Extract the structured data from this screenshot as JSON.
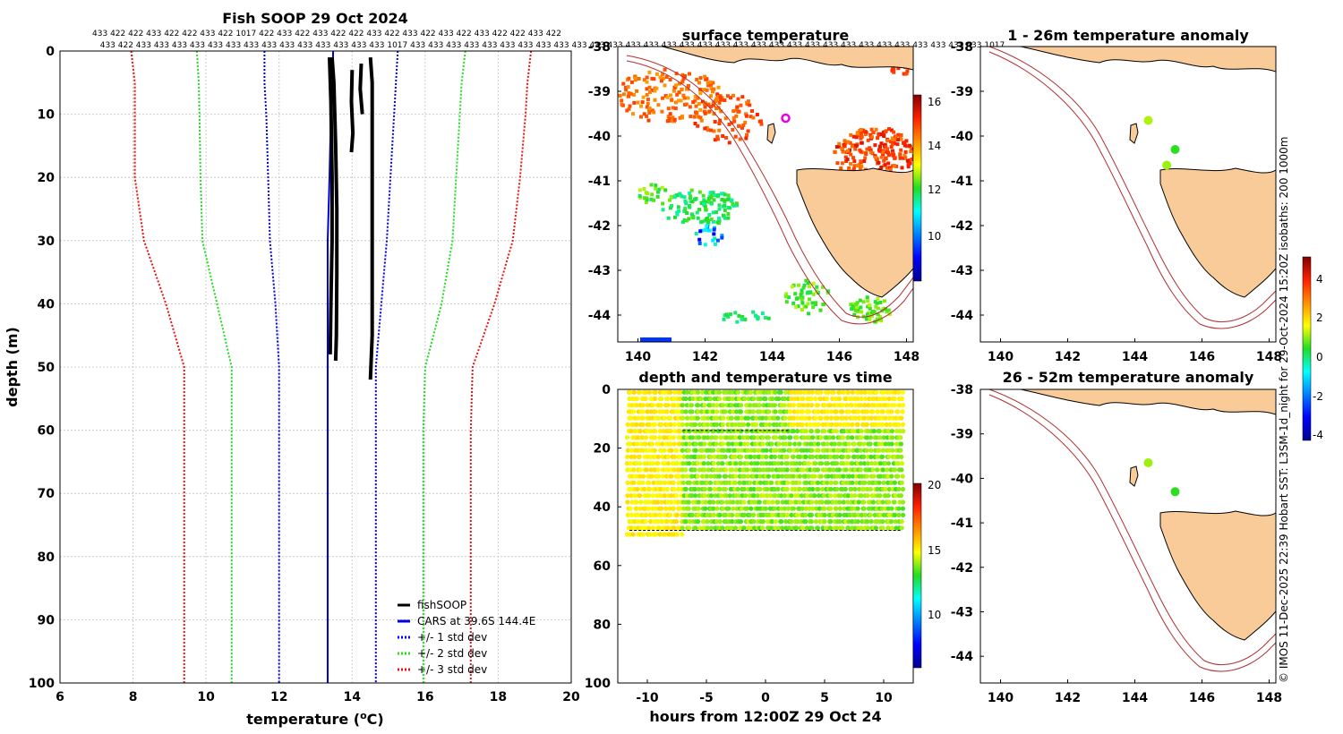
{
  "profile": {
    "title": "Fish SOOP 29 Oct 2024",
    "id_row1": "433 422 422 433 422 422 433 422 1017 422 433 422 433 422 422 433 422 433 422 433 422 433 422 422 433 422",
    "id_row2": "433 422 433 433 433 433 433 433 433 433 433 433 433 433 433 433 1017 433 433 433 433 433 433 433 433 433 433 433 433 433 433 433 433 433 433 433 433 433 433 433 433 433 433 433 433 433 433 433 433 1017",
    "xlabel": "temperature (",
    "xlabel_sup": "o",
    "xlabel_end": "C)",
    "ylabel": "depth (m)",
    "legend": [
      "fishSOOP",
      "CARS at 39.6S 144.4E",
      "+/- 1 std dev",
      "+/- 2 std dev",
      "+/- 3 std dev"
    ],
    "colors": {
      "fish": "#000000",
      "cars": "#0000dd",
      "sd1": "#0000ee",
      "sd2": "#22dd22",
      "sd3": "#ee1111"
    }
  },
  "sst": {
    "title": "surface temperature",
    "colorbar_ticks": [
      "16",
      "14",
      "12",
      "10"
    ]
  },
  "depthtime": {
    "title": "depth and temperature vs time",
    "xlabel": "hours from 12:00Z 29 Oct 24",
    "colorbar_ticks": [
      "20",
      "15",
      "10"
    ]
  },
  "anom1": {
    "title": "1 - 26m temperature anomaly"
  },
  "anom2": {
    "title": "26 - 52m temperature anomaly"
  },
  "anomaly_colorbar_ticks": [
    "4",
    "2",
    "0",
    "-2",
    "-4"
  ],
  "credit": "© IMOS 11-Dec-2025 22:39 Hobart SST: L3SM-1d_night for 29-Oct-2024 15:20Z isobaths: 200  1000m",
  "chart_data": [
    {
      "type": "line",
      "title": "Fish SOOP 29 Oct 2024",
      "xlabel": "temperature (oC)",
      "ylabel": "depth (m)",
      "xlim": [
        6,
        20
      ],
      "ylim": [
        0,
        100
      ],
      "y_reversed": true,
      "xticks": [
        6,
        8,
        10,
        12,
        14,
        16,
        18,
        20
      ],
      "yticks": [
        0,
        10,
        20,
        30,
        40,
        50,
        60,
        70,
        80,
        90,
        100
      ],
      "grid": true,
      "legend_position": "bottom-right",
      "series": [
        {
          "name": "CARS at 39.6S 144.4E",
          "style": "solid",
          "color": "#0000dd",
          "points": [
            [
              13.48,
              0
            ],
            [
              13.46,
              5
            ],
            [
              13.42,
              10
            ],
            [
              13.38,
              20
            ],
            [
              13.33,
              30
            ],
            [
              13.33,
              40
            ],
            [
              13.33,
              50
            ],
            [
              13.33,
              60
            ],
            [
              13.33,
              70
            ],
            [
              13.33,
              80
            ],
            [
              13.33,
              90
            ],
            [
              13.33,
              100
            ]
          ]
        },
        {
          "name": "+/- 1 std dev low",
          "style": "dotted",
          "color": "#0000ee",
          "points": [
            [
              11.6,
              0
            ],
            [
              11.6,
              5
            ],
            [
              11.65,
              10
            ],
            [
              11.7,
              20
            ],
            [
              11.75,
              30
            ],
            [
              11.9,
              40
            ],
            [
              12.0,
              50
            ],
            [
              12.0,
              60
            ],
            [
              12.0,
              70
            ],
            [
              12.0,
              80
            ],
            [
              12.0,
              90
            ],
            [
              12.0,
              100
            ]
          ]
        },
        {
          "name": "+/- 1 std dev high",
          "style": "dotted",
          "color": "#0000ee",
          "points": [
            [
              15.25,
              0
            ],
            [
              15.2,
              5
            ],
            [
              15.15,
              10
            ],
            [
              15.05,
              20
            ],
            [
              14.95,
              30
            ],
            [
              14.8,
              40
            ],
            [
              14.65,
              50
            ],
            [
              14.65,
              60
            ],
            [
              14.65,
              70
            ],
            [
              14.65,
              80
            ],
            [
              14.65,
              90
            ],
            [
              14.65,
              100
            ]
          ]
        },
        {
          "name": "+/- 2 std dev low",
          "style": "dotted",
          "color": "#22dd22",
          "points": [
            [
              9.75,
              0
            ],
            [
              9.8,
              5
            ],
            [
              9.82,
              10
            ],
            [
              9.85,
              20
            ],
            [
              9.9,
              30
            ],
            [
              10.3,
              40
            ],
            [
              10.7,
              50
            ],
            [
              10.7,
              60
            ],
            [
              10.7,
              70
            ],
            [
              10.7,
              80
            ],
            [
              10.7,
              90
            ],
            [
              10.7,
              100
            ]
          ]
        },
        {
          "name": "+/- 2 std dev high",
          "style": "dotted",
          "color": "#22dd22",
          "points": [
            [
              17.1,
              0
            ],
            [
              17.0,
              5
            ],
            [
              16.95,
              10
            ],
            [
              16.85,
              20
            ],
            [
              16.75,
              30
            ],
            [
              16.45,
              40
            ],
            [
              16.0,
              50
            ],
            [
              15.95,
              60
            ],
            [
              15.95,
              70
            ],
            [
              15.95,
              80
            ],
            [
              15.95,
              90
            ],
            [
              15.95,
              100
            ]
          ]
        },
        {
          "name": "+/- 3 std dev low",
          "style": "dotted",
          "color": "#ee1111",
          "points": [
            [
              7.95,
              0
            ],
            [
              8.05,
              5
            ],
            [
              8.05,
              10
            ],
            [
              8.05,
              20
            ],
            [
              8.3,
              30
            ],
            [
              8.9,
              40
            ],
            [
              9.4,
              50
            ],
            [
              9.4,
              60
            ],
            [
              9.4,
              70
            ],
            [
              9.4,
              80
            ],
            [
              9.4,
              90
            ],
            [
              9.4,
              100
            ]
          ]
        },
        {
          "name": "+/- 3 std dev high",
          "style": "dotted",
          "color": "#ee1111",
          "points": [
            [
              18.9,
              0
            ],
            [
              18.8,
              5
            ],
            [
              18.75,
              10
            ],
            [
              18.6,
              20
            ],
            [
              18.4,
              30
            ],
            [
              17.9,
              40
            ],
            [
              17.3,
              50
            ],
            [
              17.25,
              60
            ],
            [
              17.25,
              70
            ],
            [
              17.25,
              80
            ],
            [
              17.25,
              90
            ],
            [
              17.25,
              100
            ]
          ]
        },
        {
          "name": "fishSOOP profile 1",
          "style": "solid",
          "color": "#000000",
          "points": [
            [
              13.45,
              1
            ],
            [
              13.5,
              5
            ],
            [
              13.55,
              15
            ],
            [
              13.58,
              25
            ],
            [
              13.58,
              35
            ],
            [
              13.57,
              45
            ],
            [
              13.55,
              49
            ]
          ]
        },
        {
          "name": "fishSOOP profile 2",
          "style": "solid",
          "color": "#000000",
          "points": [
            [
              13.38,
              1
            ],
            [
              13.42,
              8
            ],
            [
              13.45,
              20
            ],
            [
              13.45,
              30
            ],
            [
              13.42,
              40
            ],
            [
              13.4,
              48
            ]
          ]
        },
        {
          "name": "fishSOOP profile 3",
          "style": "solid",
          "color": "#000000",
          "points": [
            [
              14.0,
              3
            ],
            [
              13.98,
              8
            ],
            [
              14.02,
              13
            ],
            [
              13.98,
              16
            ]
          ]
        },
        {
          "name": "fishSOOP profile 4",
          "style": "solid",
          "color": "#000000",
          "points": [
            [
              14.25,
              2
            ],
            [
              14.22,
              6
            ],
            [
              14.28,
              10
            ]
          ]
        },
        {
          "name": "fishSOOP profile 5",
          "style": "solid",
          "color": "#000000",
          "points": [
            [
              14.5,
              1
            ],
            [
              14.55,
              5
            ],
            [
              14.55,
              20
            ],
            [
              14.55,
              35
            ],
            [
              14.55,
              45
            ],
            [
              14.5,
              52
            ]
          ]
        }
      ]
    },
    {
      "type": "heatmap",
      "title": "surface temperature",
      "xlim": [
        139.4,
        148.2
      ],
      "ylim": [
        -44.6,
        -38
      ],
      "xticks": [
        140,
        142,
        144,
        146,
        148
      ],
      "yticks": [
        -38,
        -39,
        -40,
        -41,
        -42,
        -43,
        -44
      ],
      "colorbar": {
        "ticks": [
          16,
          14,
          12,
          10
        ],
        "range": [
          8,
          16.5
        ]
      },
      "marker": {
        "lon": 144.4,
        "lat": -39.6,
        "color": "#e800e8"
      }
    },
    {
      "type": "scatter",
      "title": "depth and temperature vs time",
      "xlabel": "hours from 12:00Z 29 Oct 24",
      "xlim": [
        -12.5,
        12.5
      ],
      "ylim": [
        0,
        100
      ],
      "y_reversed": true,
      "xticks": [
        -10,
        -5,
        0,
        5,
        10
      ],
      "yticks": [
        0,
        20,
        40,
        60,
        80,
        100
      ],
      "colorbar": {
        "ticks": [
          20,
          15,
          10
        ],
        "range": [
          5.5,
          20
        ]
      }
    },
    {
      "type": "scatter",
      "title": "1 - 26m temperature anomaly",
      "xlim": [
        139.4,
        148.2
      ],
      "ylim": [
        -44.6,
        -38
      ],
      "xticks": [
        140,
        142,
        144,
        146,
        148
      ],
      "yticks": [
        -38,
        -39,
        -40,
        -41,
        -42,
        -43,
        -44
      ],
      "points": [
        {
          "lon": 144.4,
          "lat": -39.65,
          "anomaly": 1.0
        },
        {
          "lon": 145.2,
          "lat": -40.3,
          "anomaly": 0.3
        },
        {
          "lon": 144.95,
          "lat": -40.65,
          "anomaly": 0.9
        }
      ]
    },
    {
      "type": "scatter",
      "title": "26 - 52m temperature anomaly",
      "xlim": [
        139.4,
        148.2
      ],
      "ylim": [
        -44.6,
        -38
      ],
      "xticks": [
        140,
        142,
        144,
        146,
        148
      ],
      "yticks": [
        -38,
        -39,
        -40,
        -41,
        -42,
        -43,
        -44
      ],
      "points": [
        {
          "lon": 144.4,
          "lat": -39.65,
          "anomaly": 0.9
        },
        {
          "lon": 145.2,
          "lat": -40.3,
          "anomaly": 0.3
        }
      ],
      "colorbar": {
        "ticks": [
          4,
          2,
          0,
          -2,
          -4
        ],
        "range": [
          -4.5,
          5
        ]
      }
    }
  ]
}
